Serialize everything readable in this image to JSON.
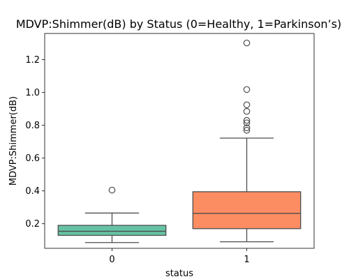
{
  "chart_data": {
    "type": "box",
    "title": "MDVP:Shimmer(dB) by Status (0=Healthy, 1=Parkinson’s)",
    "xlabel": "status",
    "ylabel": "MDVP:Shimmer(dB)",
    "categories": [
      "0",
      "1"
    ],
    "ylim": [
      0.05,
      1.36
    ],
    "yticks": [
      0.2,
      0.4,
      0.6,
      0.8,
      1.0,
      1.2
    ],
    "ytick_labels": [
      "0.2",
      "0.4",
      "0.6",
      "0.8",
      "1.0",
      "1.2"
    ],
    "grid": false,
    "boxes": [
      {
        "category": "0",
        "min": 0.085,
        "q1": 0.129,
        "median": 0.154,
        "q3": 0.19,
        "max": 0.265,
        "outliers": [
          0.405
        ],
        "color": "#66c2a5"
      },
      {
        "category": "1",
        "min": 0.09,
        "q1": 0.17,
        "median": 0.263,
        "q3": 0.395,
        "max": 0.722,
        "outliers": [
          0.77,
          0.785,
          0.815,
          0.83,
          0.885,
          0.925,
          1.018,
          1.302
        ],
        "color": "#fc8d62"
      }
    ]
  }
}
